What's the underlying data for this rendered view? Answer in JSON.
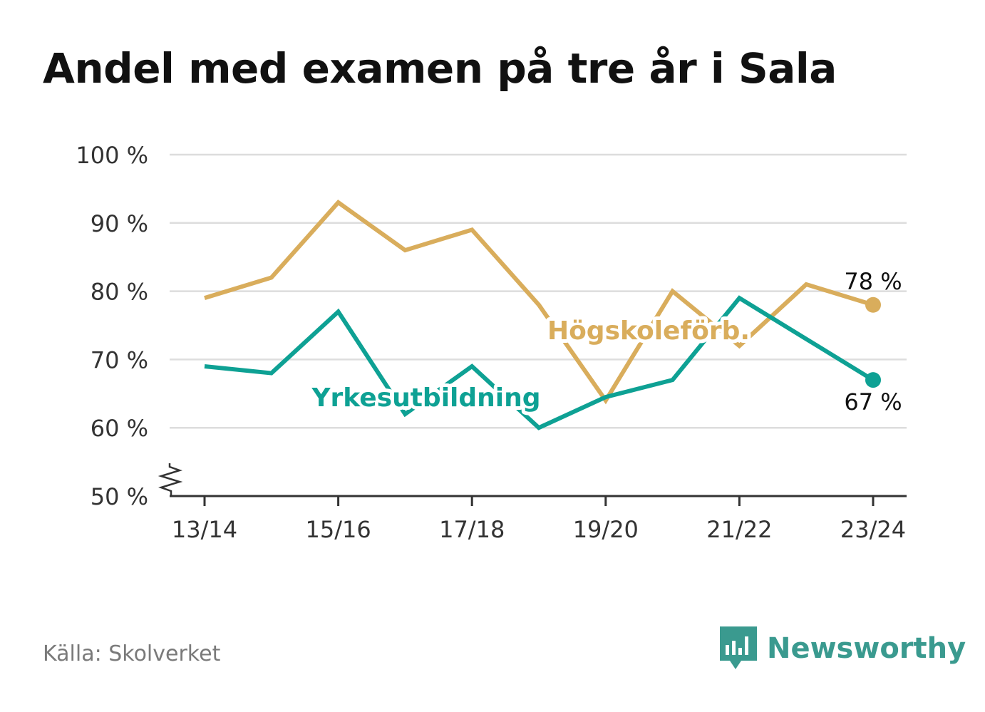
{
  "title": "Andel med examen på tre år i Sala",
  "source": "Källa: Skolverket",
  "brand": {
    "name": "Newsworthy",
    "color": "#3a9a8f",
    "icon": "bar-chart-speech-bubble-icon"
  },
  "colors": {
    "hogskole": "#d9ad5c",
    "yrkes": "#0ea194",
    "grid": "#dddddd",
    "axis": "#333333",
    "text": "#333333"
  },
  "chart_data": {
    "type": "line",
    "x": [
      "13/14",
      "14/15",
      "15/16",
      "16/17",
      "17/18",
      "18/19",
      "19/20",
      "20/21",
      "21/22",
      "22/23",
      "23/24"
    ],
    "x_tick_labels": [
      "13/14",
      "15/16",
      "17/18",
      "19/20",
      "21/22",
      "23/24"
    ],
    "y_tick_labels": [
      "50 %",
      "60 %",
      "70 %",
      "80 %",
      "90 %",
      "100 %"
    ],
    "y_ticks": [
      50,
      60,
      70,
      80,
      90,
      100
    ],
    "ylim": [
      50,
      100
    ],
    "axis_break": true,
    "grid": true,
    "series": [
      {
        "name": "Högskoleförb.",
        "color": "#d9ad5c",
        "values": [
          79,
          82,
          93,
          86,
          89,
          78,
          64,
          80,
          72,
          81,
          78
        ],
        "end_label": "78 %"
      },
      {
        "name": "Yrkesutbildning",
        "color": "#0ea194",
        "values": [
          69,
          68,
          77,
          62,
          69,
          60,
          64.5,
          67,
          79,
          73,
          67
        ],
        "end_label": "67 %"
      }
    ]
  }
}
